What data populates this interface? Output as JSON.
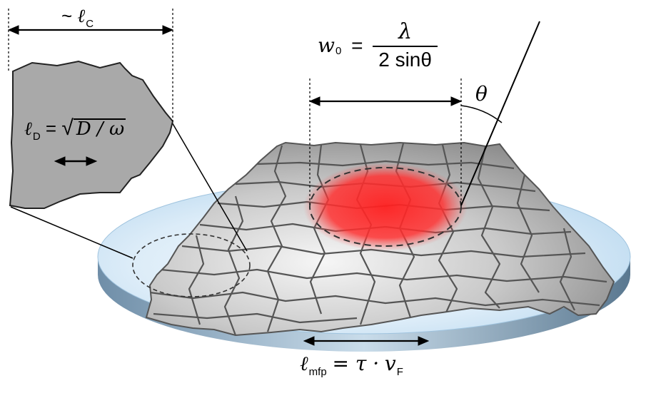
{
  "labels": {
    "coherence": {
      "prefix": "~",
      "symbol": "ℓ",
      "sub": "C"
    },
    "diffusion": {
      "symbol": "ℓ",
      "sub": "D",
      "eq": "=",
      "root": "D / ω"
    },
    "beam_waist": {
      "symbol": "w",
      "sub": "0",
      "eq": "=",
      "numerator": "λ",
      "denominator": "2 sinθ"
    },
    "angle": {
      "symbol": "θ"
    },
    "mean_free_path": {
      "symbol": "ℓ",
      "sub": "mfp",
      "eq": "= τ ·",
      "vel": "v",
      "vel_sub": "F"
    }
  },
  "colors": {
    "disk_top": "#cfe6f5",
    "disk_edge": "#5f7f99",
    "flakes": "#a8a8a8",
    "flake_edges": "#555555",
    "laser_spot": "#ff2a2a",
    "inset": "#a9a9a9"
  }
}
